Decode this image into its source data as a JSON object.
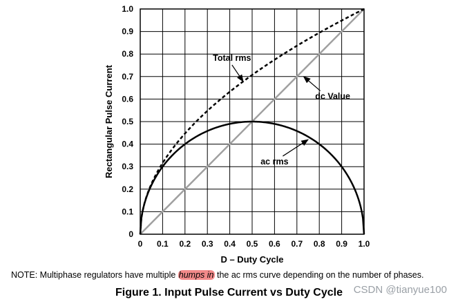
{
  "chart_data": {
    "type": "line",
    "xlabel": "D – Duty Cycle",
    "ylabel": "Rectangular Pulse Current",
    "xlim": [
      0,
      1
    ],
    "ylim": [
      0,
      1
    ],
    "xticks": [
      "0",
      "0.1",
      "0.2",
      "0.3",
      "0.4",
      "0.5",
      "0.6",
      "0.7",
      "0.8",
      "0.9",
      "1.0"
    ],
    "yticks": [
      "0",
      "0.1",
      "0.2",
      "0.3",
      "0.4",
      "0.5",
      "0.6",
      "0.7",
      "0.8",
      "0.9",
      "1.0"
    ],
    "grid": true,
    "x": [
      0,
      0.05,
      0.1,
      0.15,
      0.2,
      0.25,
      0.3,
      0.35,
      0.4,
      0.45,
      0.5,
      0.55,
      0.6,
      0.65,
      0.7,
      0.75,
      0.8,
      0.85,
      0.9,
      0.95,
      1.0
    ],
    "series": [
      {
        "name": "Total rms",
        "style": "dashed",
        "color": "#000000",
        "values": [
          0,
          0.224,
          0.316,
          0.387,
          0.447,
          0.5,
          0.548,
          0.592,
          0.632,
          0.671,
          0.707,
          0.742,
          0.775,
          0.806,
          0.837,
          0.866,
          0.894,
          0.922,
          0.949,
          0.975,
          1.0
        ]
      },
      {
        "name": "dc Value",
        "style": "solid",
        "color": "#a0a0a0",
        "values": [
          0,
          0.05,
          0.1,
          0.15,
          0.2,
          0.25,
          0.3,
          0.35,
          0.4,
          0.45,
          0.5,
          0.55,
          0.6,
          0.65,
          0.7,
          0.75,
          0.8,
          0.85,
          0.9,
          0.95,
          1.0
        ]
      },
      {
        "name": "ac rms",
        "style": "solid",
        "color": "#000000",
        "values": [
          0,
          0.218,
          0.3,
          0.357,
          0.4,
          0.433,
          0.458,
          0.477,
          0.49,
          0.497,
          0.5,
          0.497,
          0.49,
          0.477,
          0.458,
          0.433,
          0.4,
          0.357,
          0.3,
          0.218,
          0
        ]
      }
    ],
    "annotations": [
      {
        "text": "Total rms",
        "x": 0.41,
        "y": 0.77,
        "target_x": 0.46,
        "target_y": 0.678
      },
      {
        "text": "dc Value",
        "x": 0.86,
        "y": 0.6,
        "target_x": 0.73,
        "target_y": 0.7
      },
      {
        "text": "ac rms",
        "x": 0.6,
        "y": 0.31,
        "target_x": 0.75,
        "target_y": 0.42
      }
    ]
  },
  "note": {
    "prefix": "NOTE:  Multiphase regulators have multiple ",
    "highlight": "humps in",
    "suffix": " the ac rms curve depending on the number of phases."
  },
  "caption": "Figure 1. Input Pulse Current vs Duty Cycle",
  "watermark": "CSDN @tianyue100"
}
